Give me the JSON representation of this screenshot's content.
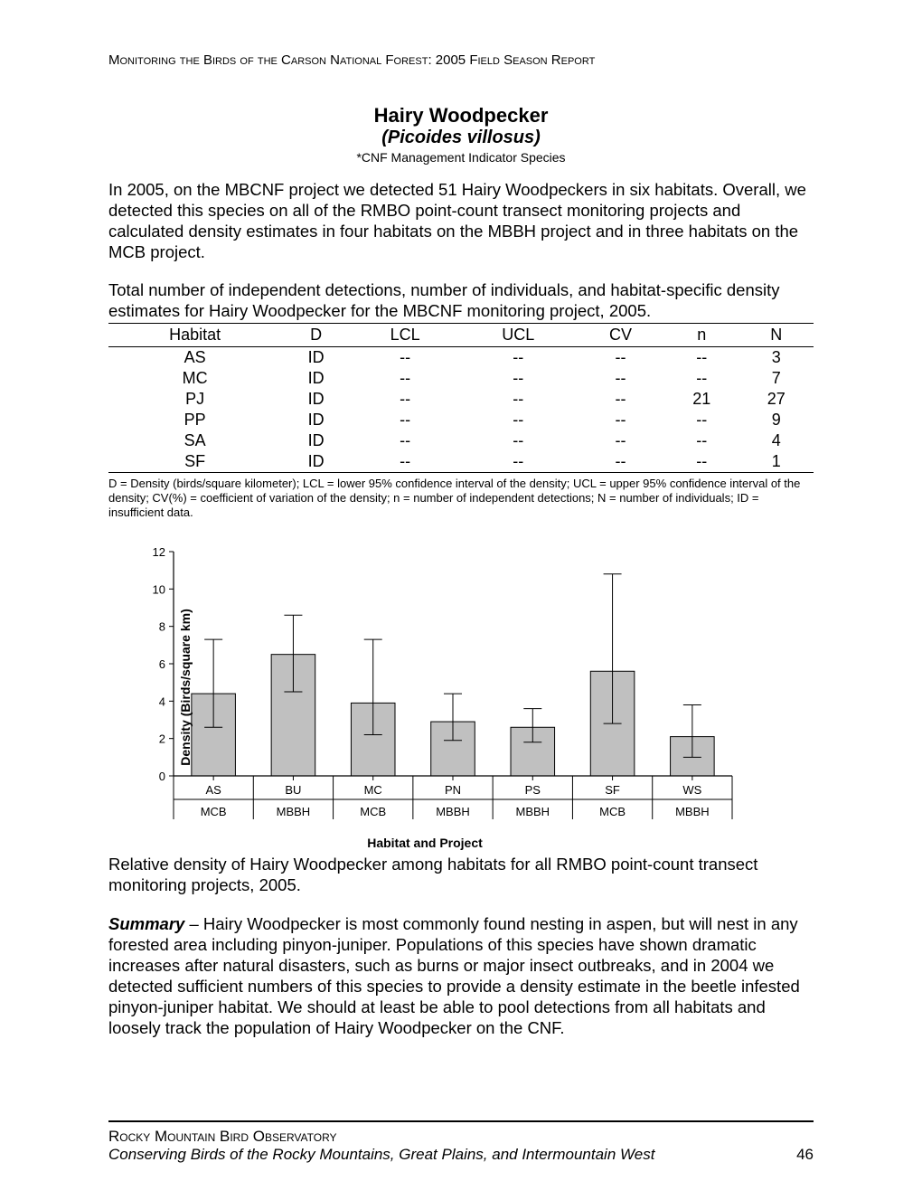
{
  "header": {
    "text": "Monitoring the Birds of the Carson National Forest: 2005 Field Season Report"
  },
  "title": {
    "common": "Hairy Woodpecker",
    "scientific": "(Picoides villosus)",
    "note": "*CNF Management Indicator Species"
  },
  "intro_para": "In 2005, on the MBCNF project we detected 51 Hairy Woodpeckers in six habitats.  Overall, we detected this species on all of the RMBO point-count transect monitoring projects and calculated density estimates in four habitats on the MBBH project and in three habitats on the MCB project.",
  "table": {
    "caption": "Total number of independent detections, number of individuals, and habitat-specific density estimates for Hairy Woodpecker for the MBCNF monitoring project, 2005.",
    "columns": [
      "Habitat",
      "D",
      "LCL",
      "UCL",
      "CV",
      "n",
      "N"
    ],
    "rows": [
      [
        "AS",
        "ID",
        "--",
        "--",
        "--",
        "--",
        "3"
      ],
      [
        "MC",
        "ID",
        "--",
        "--",
        "--",
        "--",
        "7"
      ],
      [
        "PJ",
        "ID",
        "--",
        "--",
        "--",
        "21",
        "27"
      ],
      [
        "PP",
        "ID",
        "--",
        "--",
        "--",
        "--",
        "9"
      ],
      [
        "SA",
        "ID",
        "--",
        "--",
        "--",
        "--",
        "4"
      ],
      [
        "SF",
        "ID",
        "--",
        "--",
        "--",
        "--",
        "1"
      ]
    ],
    "footnote": "D = Density (birds/square kilometer); LCL = lower 95% confidence interval of the density; UCL = upper 95% confidence interval of the density; CV(%) = coefficient of variation of the density; n = number of independent detections; N = number of individuals; ID = insufficient data."
  },
  "chart": {
    "type": "bar-with-error",
    "ylabel": "Density (Birds/square km)",
    "xlabel": "Habitat and Project",
    "ylim": [
      0,
      12
    ],
    "ytick_step": 2,
    "yticks": [
      0,
      2,
      4,
      6,
      8,
      10,
      12
    ],
    "plot_bg": "#ffffff",
    "axis_color": "#000000",
    "bar_color": "#c0c0c0",
    "bar_border": "#000000",
    "error_color": "#000000",
    "tick_fontsize": 13,
    "label_fontsize": 14,
    "bar_width_ratio": 0.55,
    "categories": [
      "AS",
      "BU",
      "MC",
      "PN",
      "PS",
      "SF",
      "WS"
    ],
    "projects": [
      "MCB",
      "MBBH",
      "MCB",
      "MBBH",
      "MBBH",
      "MCB",
      "MBBH"
    ],
    "values": [
      4.4,
      6.5,
      3.9,
      2.9,
      2.6,
      5.6,
      2.1
    ],
    "err_low": [
      2.6,
      4.5,
      2.2,
      1.9,
      1.8,
      2.8,
      1.0
    ],
    "err_high": [
      7.3,
      8.6,
      7.3,
      4.4,
      3.6,
      10.8,
      3.8
    ]
  },
  "chart_caption": "Relative density of Hairy Woodpecker among habitats for all RMBO point-count transect monitoring projects, 2005.",
  "summary": {
    "lead": "Summary",
    "body": " – Hairy Woodpecker is most commonly found nesting in aspen, but will nest in any forested area including pinyon-juniper.  Populations of this species have shown dramatic increases after natural disasters, such as burns or major insect outbreaks, and in 2004 we detected sufficient numbers of this species to provide a density estimate in the beetle infested pinyon-juniper habitat.  We should at least be able to pool detections from all habitats and loosely track the population of Hairy Woodpecker on the CNF."
  },
  "footer": {
    "org": "Rocky Mountain Bird Observatory",
    "tagline": "Conserving Birds of the Rocky Mountains, Great Plains, and Intermountain West",
    "page": "46"
  }
}
